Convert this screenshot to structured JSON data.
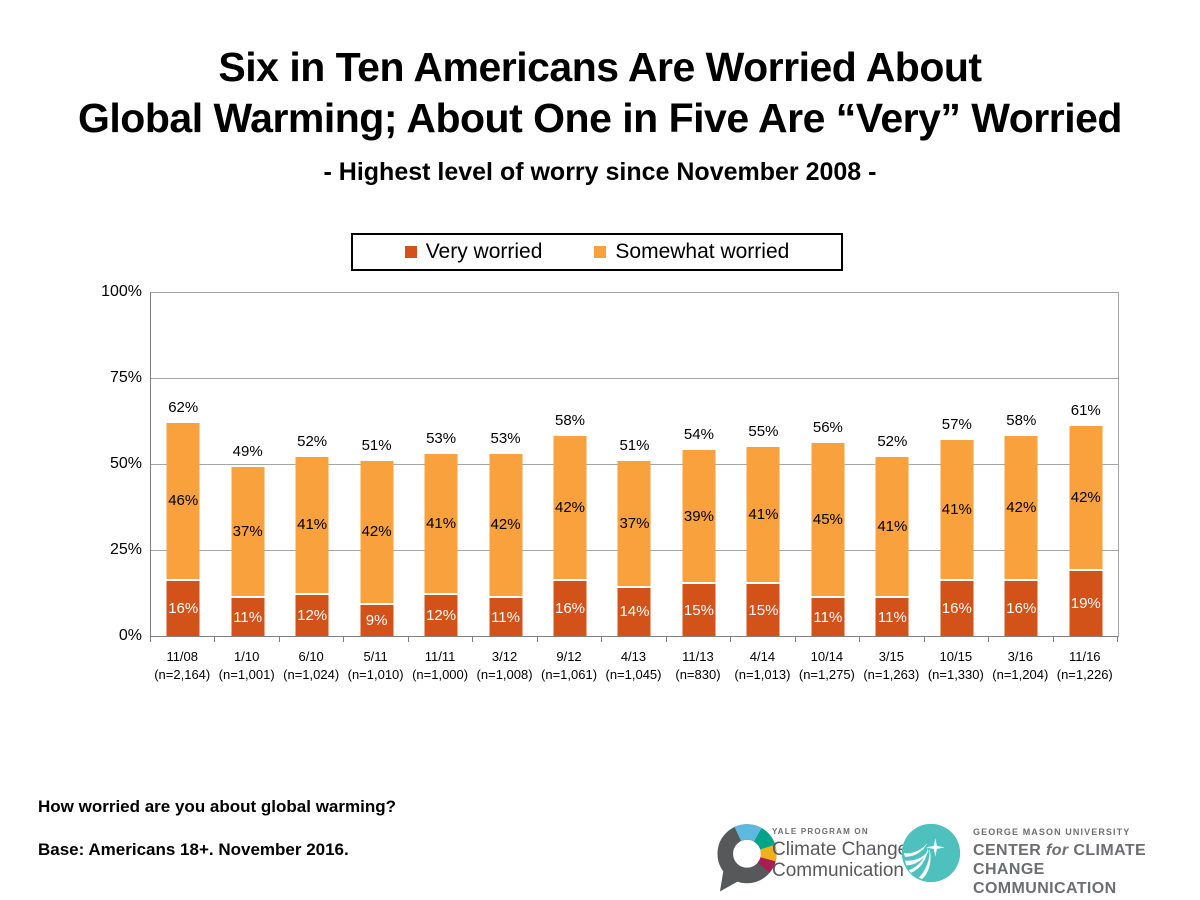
{
  "title": {
    "line1": "Six in Ten Americans Are Worried About",
    "line2": "Global Warming; About One in Five Are “Very” Worried",
    "subtitle": "- Highest level of worry since November 2008 -"
  },
  "legend": {
    "items": [
      {
        "label": "Very worried",
        "color": "#D2521A"
      },
      {
        "label": "Somewhat worried",
        "color": "#F9A13C"
      }
    ]
  },
  "chart_data": {
    "type": "bar",
    "stacked": true,
    "title": "Six in Ten Americans Are Worried About Global Warming; About One in Five Are “Very” Worried",
    "subtitle": "- Highest level of worry since November 2008 -",
    "categories": [
      "11/08",
      "1/10",
      "6/10",
      "5/11",
      "11/11",
      "3/12",
      "9/12",
      "4/13",
      "11/13",
      "4/14",
      "10/14",
      "3/15",
      "10/15",
      "3/16",
      "11/16"
    ],
    "sample_sizes": [
      "(n=2,164)",
      "(n=1,001)",
      "(n=1,024)",
      "(n=1,010)",
      "(n=1,000)",
      "(n=1,008)",
      "(n=1,061)",
      "(n=1,045)",
      "(n=830)",
      "(n=1,013)",
      "(n=1,275)",
      "(n=1,263)",
      "(n=1,330)",
      "(n=1,204)",
      "(n=1,226)"
    ],
    "series": [
      {
        "name": "Very worried",
        "color": "#D2521A",
        "values": [
          16,
          11,
          12,
          9,
          12,
          11,
          16,
          14,
          15,
          15,
          11,
          11,
          16,
          16,
          19
        ]
      },
      {
        "name": "Somewhat worried",
        "color": "#F9A13C",
        "values": [
          46,
          37,
          41,
          42,
          41,
          42,
          42,
          37,
          39,
          41,
          45,
          41,
          41,
          42,
          42
        ]
      }
    ],
    "totals": [
      62,
      49,
      52,
      51,
      53,
      53,
      58,
      51,
      54,
      55,
      56,
      52,
      57,
      58,
      61
    ],
    "xlabel": "",
    "ylabel": "",
    "ylim": [
      0,
      100
    ],
    "yticks": [
      {
        "value": 0,
        "label": "0%"
      },
      {
        "value": 25,
        "label": "25%"
      },
      {
        "value": 50,
        "label": "50%"
      },
      {
        "value": 75,
        "label": "75%"
      },
      {
        "value": 100,
        "label": "100%"
      }
    ],
    "grid": true,
    "legend_position": "top-center"
  },
  "footer": {
    "question": "How worried are you about global warming?",
    "base": "Base: Americans 18+. November 2016."
  },
  "logos": {
    "yale": {
      "program": "YALE PROGRAM ON",
      "name_line1": "Climate Change",
      "name_line2": "Communication"
    },
    "gmu": {
      "university": "GEORGE MASON UNIVERSITY",
      "name_pre": "CENTER ",
      "name_for": "for",
      "name_post": " CLIMATE CHANGE",
      "name_line2": "COMMUNICATION"
    }
  },
  "colors": {
    "very": "#D2521A",
    "somewhat": "#F9A13C",
    "very_label_text": "#FFFFFF",
    "somewhat_label_text": "#000000",
    "gridline": "#A6A6A6",
    "axis": "#808080",
    "legend_border": "#000000",
    "yale_gray": "#58595B",
    "yale_blue": "#5EB8DF",
    "yale_green": "#00A589",
    "yale_yellow": "#F3B01C",
    "yale_magenta": "#A91E52",
    "gmu_teal": "#4EC0BD"
  }
}
